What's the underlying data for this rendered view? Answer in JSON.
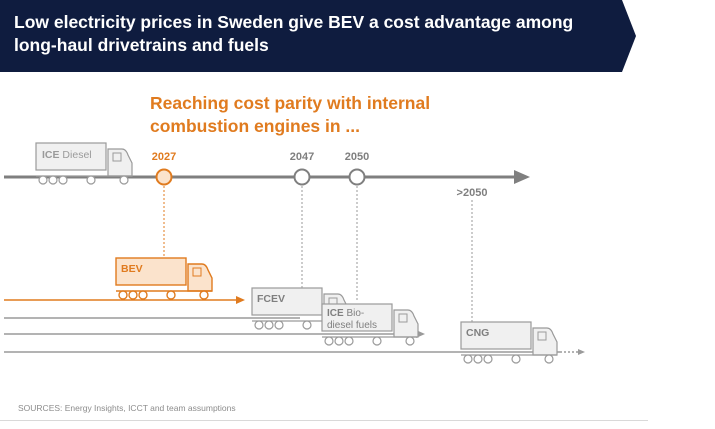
{
  "header": {
    "title": "Low electricity prices in Sweden give BEV a cost advantage among long-haul drivetrains and fuels",
    "background_color": "#0f1c3f"
  },
  "subtitle": "Reaching cost parity with internal combustion engines in ...",
  "accent_color": "#e07b1f",
  "timeline": {
    "reference": "ICE Diesel",
    "milestones": [
      {
        "label": "2027",
        "drivetrain": "BEV",
        "highlight": true
      },
      {
        "label": "2047",
        "drivetrain": "FCEV",
        "highlight": false
      },
      {
        "label": "2050",
        "drivetrain": "ICE Bio-diesel fuels",
        "highlight": false
      },
      {
        "label": ">2050",
        "drivetrain": "CNG",
        "highlight": false
      }
    ]
  },
  "trucks": {
    "ice_diesel": {
      "label_bold": "ICE",
      "label_rest": " Diesel"
    },
    "bev": {
      "label_bold": "BEV"
    },
    "fcev": {
      "label_bold": "FCEV"
    },
    "ice_bio": {
      "label_bold": "ICE",
      "label_rest": " Bio-",
      "label_line2": "diesel fuels"
    },
    "cng": {
      "label_bold": "CNG"
    }
  },
  "source": "SOURCES: Energy Insights, ICCT and team assumptions"
}
